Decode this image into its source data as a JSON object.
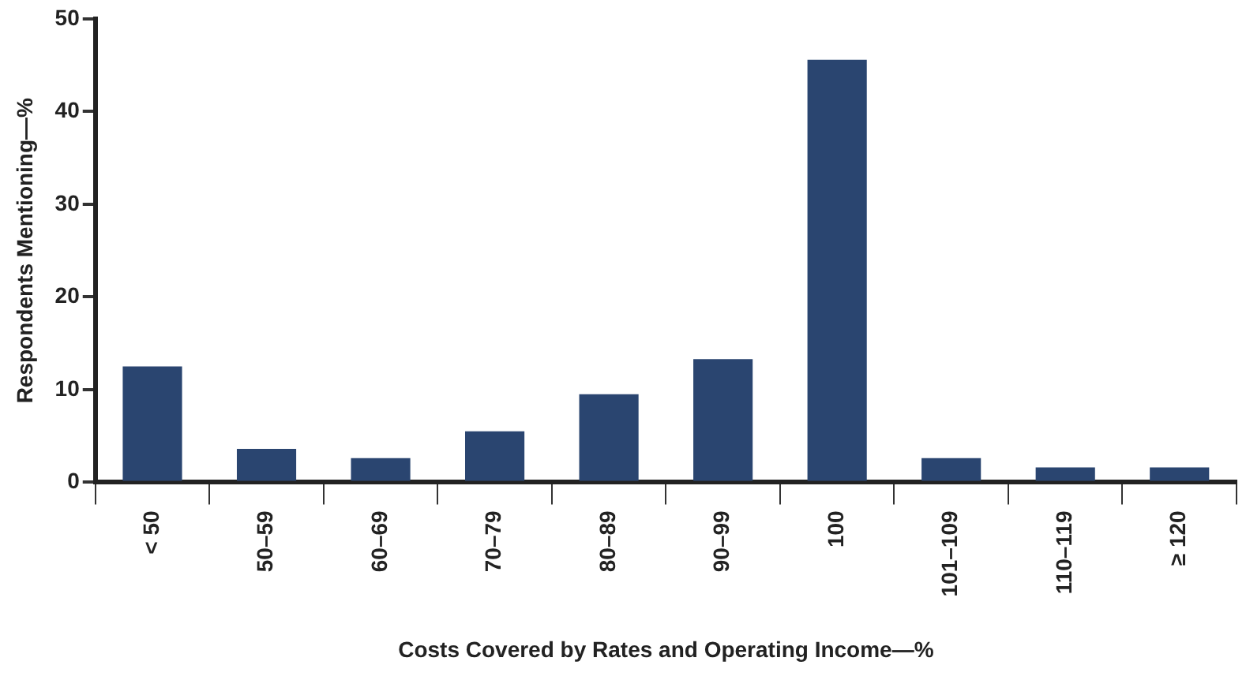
{
  "chart_data": {
    "type": "bar",
    "xlabel": "Costs Covered by Rates and Operating Income—%",
    "ylabel": "Respondents Mentioning—%",
    "categories": [
      "< 50",
      "50–59",
      "60–69",
      "70–79",
      "80–89",
      "90–99",
      "100",
      "101–109",
      "110–119",
      "≥ 120"
    ],
    "values": [
      12.5,
      3.6,
      2.6,
      5.5,
      9.5,
      13.3,
      45.6,
      2.6,
      1.6,
      1.6
    ],
    "color": "#2a4570",
    "ylim": [
      0,
      50
    ],
    "yticks": [
      0,
      10,
      20,
      30,
      40,
      50
    ],
    "grid": false,
    "legend": false
  }
}
